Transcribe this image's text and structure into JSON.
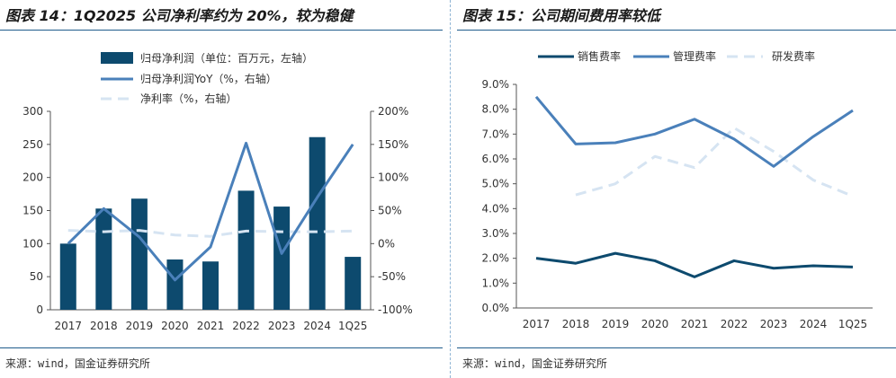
{
  "colors": {
    "bar": "#0d4a6e",
    "yoy": "#4a80ba",
    "margin": "#d6e4f2",
    "sales": "#0d4a6e",
    "mgmt": "#4a80ba",
    "rnd": "#d6e4f2",
    "rule": "#1f5c8c"
  },
  "left": {
    "title": "图表 14：1Q2025 公司净利率约为 20%，较为稳健",
    "source": "来源：wind，国金证券研究所"
  },
  "right": {
    "title": "图表 15：公司期间费用率较低",
    "source": "来源：wind，国金证券研究所"
  },
  "chart_data": [
    {
      "type": "bar",
      "title": "图表 14：1Q2025 公司净利率约为 20%，较为稳健",
      "categories": [
        "2017",
        "2018",
        "2019",
        "2020",
        "2021",
        "2022",
        "2023",
        "2024",
        "1Q25"
      ],
      "series": [
        {
          "name": "归母净利润（单位：百万元，左轴）",
          "kind": "bar",
          "axis": "left",
          "values": [
            100,
            153,
            168,
            76,
            73,
            180,
            156,
            261,
            80
          ]
        },
        {
          "name": "归母净利润YoY（%，右轴）",
          "kind": "line",
          "axis": "right",
          "values": [
            0,
            53,
            10,
            -55,
            -5,
            152,
            -15,
            70,
            150
          ]
        },
        {
          "name": "净利率（%，右轴）",
          "kind": "dashed-line",
          "axis": "right",
          "values": [
            20,
            18,
            20,
            13,
            11,
            19,
            18,
            18,
            19
          ]
        }
      ],
      "y_left": {
        "range": [
          0,
          300
        ],
        "ticks": [
          0,
          50,
          100,
          150,
          200,
          250,
          300
        ],
        "tick_labels": [
          "0",
          "50",
          "100",
          "150",
          "200",
          "250",
          "300"
        ]
      },
      "y_right": {
        "range": [
          -100,
          200
        ],
        "ticks": [
          -100,
          -50,
          0,
          50,
          100,
          150,
          200
        ],
        "tick_labels": [
          "-100%",
          "-50%",
          "0%",
          "50%",
          "100%",
          "150%",
          "200%"
        ]
      },
      "legend_position": "top"
    },
    {
      "type": "line",
      "title": "图表 15：公司期间费用率较低",
      "categories": [
        "2017",
        "2018",
        "2019",
        "2020",
        "2021",
        "2022",
        "2023",
        "2024",
        "1Q25"
      ],
      "series": [
        {
          "name": "销售费率",
          "kind": "line",
          "values": [
            2.0,
            1.8,
            2.2,
            1.9,
            1.25,
            1.9,
            1.6,
            1.7,
            1.65
          ]
        },
        {
          "name": "管理费率",
          "kind": "line",
          "values": [
            8.5,
            6.6,
            6.65,
            7.0,
            7.6,
            6.8,
            5.7,
            6.9,
            7.95
          ]
        },
        {
          "name": "研发费率",
          "kind": "dashed-line",
          "values": [
            null,
            4.55,
            5.0,
            6.1,
            5.65,
            7.25,
            6.3,
            5.15,
            4.5
          ]
        }
      ],
      "y": {
        "range": [
          0,
          9
        ],
        "ticks": [
          0,
          1,
          2,
          3,
          4,
          5,
          6,
          7,
          8,
          9
        ],
        "tick_labels": [
          "0.0%",
          "1.0%",
          "2.0%",
          "3.0%",
          "4.0%",
          "5.0%",
          "6.0%",
          "7.0%",
          "8.0%",
          "9.0%"
        ]
      },
      "legend_position": "top"
    }
  ]
}
